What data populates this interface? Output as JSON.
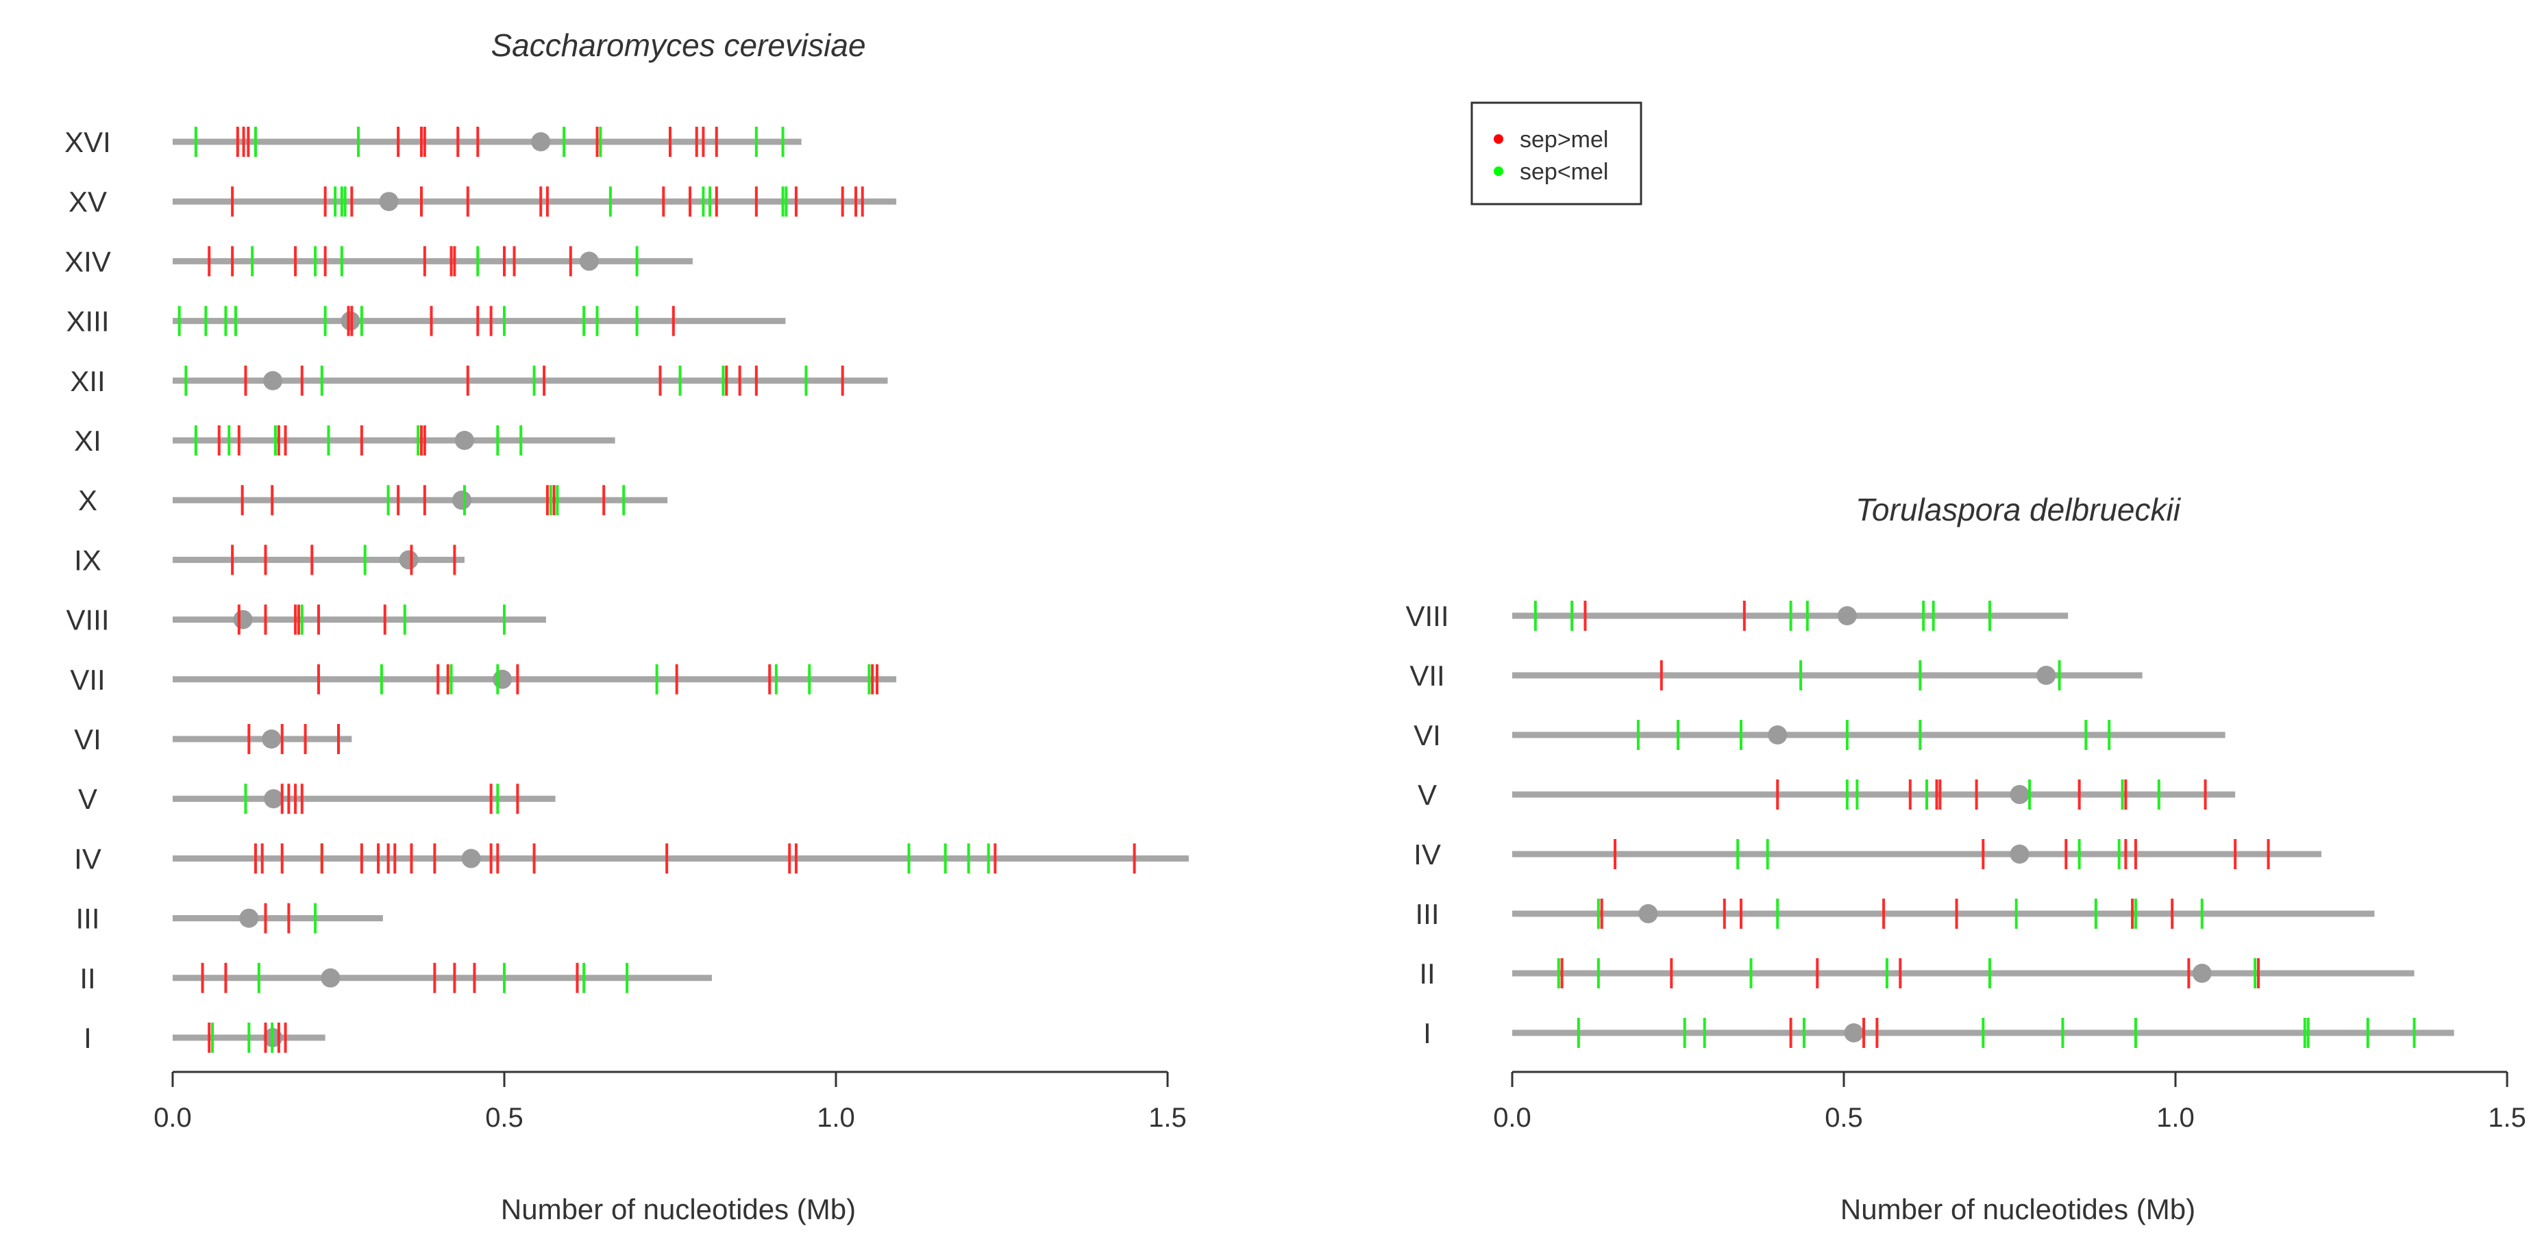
{
  "chart_data": [
    {
      "type": "chromosome-map",
      "title": "Saccharomyces cerevisiae",
      "xlabel": "Number of nucleotides (Mb)",
      "ylabel": "",
      "xlim": [
        0,
        1.5
      ],
      "xticks": [
        "0.0",
        "0.5",
        "1.0",
        "1.5"
      ],
      "chromosomes": [
        {
          "name": "XVI",
          "length": 0.948,
          "centromere": 0.555,
          "red": [
            0.098,
            0.107,
            0.114,
            0.34,
            0.375,
            0.38,
            0.43,
            0.46,
            0.64,
            0.75,
            0.79,
            0.8,
            0.82
          ],
          "green": [
            0.035,
            0.125,
            0.28,
            0.59,
            0.645,
            0.88,
            0.92
          ]
        },
        {
          "name": "XV",
          "length": 1.091,
          "centromere": 0.326,
          "red": [
            0.09,
            0.23,
            0.27,
            0.375,
            0.445,
            0.555,
            0.565,
            0.74,
            0.78,
            0.82,
            0.88,
            0.94,
            1.01,
            1.03,
            1.04
          ],
          "green": [
            0.245,
            0.255,
            0.26,
            0.66,
            0.8,
            0.81,
            0.92,
            0.925
          ]
        },
        {
          "name": "XIV",
          "length": 0.784,
          "centromere": 0.628,
          "red": [
            0.055,
            0.09,
            0.185,
            0.23,
            0.38,
            0.42,
            0.425,
            0.5,
            0.515,
            0.6
          ],
          "green": [
            0.12,
            0.215,
            0.255,
            0.46,
            0.7
          ]
        },
        {
          "name": "XIII",
          "length": 0.924,
          "centromere": 0.268,
          "red": [
            0.265,
            0.27,
            0.39,
            0.46,
            0.48,
            0.755
          ],
          "green": [
            0.01,
            0.05,
            0.08,
            0.095,
            0.23,
            0.285,
            0.5,
            0.62,
            0.64,
            0.7
          ]
        },
        {
          "name": "XII",
          "length": 1.078,
          "centromere": 0.151,
          "red": [
            0.11,
            0.195,
            0.445,
            0.56,
            0.735,
            0.835,
            0.855,
            0.88,
            1.01
          ],
          "green": [
            0.02,
            0.225,
            0.545,
            0.765,
            0.83,
            0.955
          ]
        },
        {
          "name": "XI",
          "length": 0.667,
          "centromere": 0.44,
          "red": [
            0.07,
            0.1,
            0.16,
            0.17,
            0.285,
            0.375,
            0.38
          ],
          "green": [
            0.035,
            0.085,
            0.155,
            0.235,
            0.37,
            0.49,
            0.525
          ]
        },
        {
          "name": "X",
          "length": 0.746,
          "centromere": 0.436,
          "red": [
            0.105,
            0.15,
            0.34,
            0.38,
            0.565,
            0.575,
            0.65
          ],
          "green": [
            0.325,
            0.44,
            0.57,
            0.58,
            0.68
          ]
        },
        {
          "name": "IX",
          "length": 0.44,
          "centromere": 0.356,
          "red": [
            0.09,
            0.14,
            0.21,
            0.36,
            0.425
          ],
          "green": [
            0.29
          ]
        },
        {
          "name": "VIII",
          "length": 0.563,
          "centromere": 0.106,
          "red": [
            0.1,
            0.14,
            0.185,
            0.19,
            0.22,
            0.32
          ],
          "green": [
            0.195,
            0.35,
            0.5
          ]
        },
        {
          "name": "VII",
          "length": 1.091,
          "centromere": 0.497,
          "red": [
            0.22,
            0.4,
            0.415,
            0.52,
            0.76,
            0.9,
            1.055,
            1.062
          ],
          "green": [
            0.315,
            0.42,
            0.49,
            0.73,
            0.91,
            0.96,
            1.05
          ]
        },
        {
          "name": "VI",
          "length": 0.27,
          "centromere": 0.149,
          "red": [
            0.115,
            0.165,
            0.2,
            0.25
          ],
          "green": []
        },
        {
          "name": "V",
          "length": 0.577,
          "centromere": 0.152,
          "red": [
            0.165,
            0.175,
            0.185,
            0.195,
            0.48,
            0.52
          ],
          "green": [
            0.11,
            0.49
          ]
        },
        {
          "name": "IV",
          "length": 1.532,
          "centromere": 0.45,
          "red": [
            0.125,
            0.135,
            0.165,
            0.225,
            0.285,
            0.31,
            0.325,
            0.335,
            0.36,
            0.395,
            0.48,
            0.49,
            0.545,
            0.745,
            0.93,
            0.94,
            1.24,
            1.45
          ],
          "green": [
            0.225,
            1.11,
            1.165,
            1.2,
            1.23
          ]
        },
        {
          "name": "III",
          "length": 0.317,
          "centromere": 0.115,
          "red": [
            0.14,
            0.175
          ],
          "green": [
            0.215
          ]
        },
        {
          "name": "II",
          "length": 0.813,
          "centromere": 0.238,
          "red": [
            0.045,
            0.08,
            0.395,
            0.425,
            0.455,
            0.61
          ],
          "green": [
            0.13,
            0.5,
            0.62,
            0.685
          ]
        },
        {
          "name": "I",
          "length": 0.23,
          "centromere": 0.151,
          "red": [
            0.055,
            0.14,
            0.16,
            0.17
          ],
          "green": [
            0.06,
            0.115,
            0.15
          ]
        }
      ]
    },
    {
      "type": "chromosome-map",
      "title": "Torulaspora delbrueckii",
      "xlabel": "Number of nucleotides (Mb)",
      "ylabel": "",
      "xlim": [
        0,
        1.5
      ],
      "xticks": [
        "0.0",
        "0.5",
        "1.0",
        "1.5"
      ],
      "chromosomes": [
        {
          "name": "VIII",
          "length": 0.838,
          "centromere": 0.505,
          "red": [
            0.11,
            0.35
          ],
          "green": [
            0.035,
            0.09,
            0.42,
            0.445,
            0.62,
            0.635,
            0.72
          ]
        },
        {
          "name": "VII",
          "length": 0.95,
          "centromere": 0.805,
          "red": [
            0.225
          ],
          "green": [
            0.435,
            0.615,
            0.825
          ]
        },
        {
          "name": "VI",
          "length": 1.075,
          "centromere": 0.4,
          "red": [],
          "green": [
            0.19,
            0.25,
            0.345,
            0.505,
            0.615,
            0.865,
            0.9
          ]
        },
        {
          "name": "V",
          "length": 1.09,
          "centromere": 0.765,
          "red": [
            0.4,
            0.6,
            0.64,
            0.645,
            0.7,
            0.855,
            0.925,
            1.045
          ],
          "green": [
            0.505,
            0.52,
            0.625,
            0.78,
            0.92,
            0.975
          ]
        },
        {
          "name": "IV",
          "length": 1.22,
          "centromere": 0.765,
          "red": [
            0.155,
            0.71,
            0.835,
            0.925,
            0.94,
            1.09,
            1.14
          ],
          "green": [
            0.34,
            0.385,
            0.855,
            0.915
          ]
        },
        {
          "name": "III",
          "length": 1.3,
          "centromere": 0.205,
          "red": [
            0.135,
            0.32,
            0.345,
            0.56,
            0.67,
            0.935,
            0.995
          ],
          "green": [
            0.13,
            0.4,
            0.76,
            0.88,
            0.94,
            1.04
          ]
        },
        {
          "name": "II",
          "length": 1.36,
          "centromere": 1.04,
          "red": [
            0.075,
            0.24,
            0.46,
            0.585,
            1.02,
            1.125
          ],
          "green": [
            0.07,
            0.13,
            0.36,
            0.565,
            0.72,
            1.12
          ]
        },
        {
          "name": "I",
          "length": 1.42,
          "centromere": 0.515,
          "red": [
            0.42,
            0.53,
            0.55
          ],
          "green": [
            0.1,
            0.26,
            0.29,
            0.44,
            0.71,
            0.83,
            0.94,
            1.195,
            1.2,
            1.29,
            1.36
          ]
        }
      ]
    }
  ],
  "legend": {
    "items": [
      {
        "label": "sep>mel",
        "color": "#ff0000"
      },
      {
        "label": "sep<mel",
        "color": "#00ff00"
      }
    ]
  },
  "colors": {
    "chromosome": "#a6a6a6",
    "centromere": "#9b9b9b",
    "red_tick": "#ff2a2a",
    "green_tick": "#22ee22",
    "axis": "#333333"
  }
}
